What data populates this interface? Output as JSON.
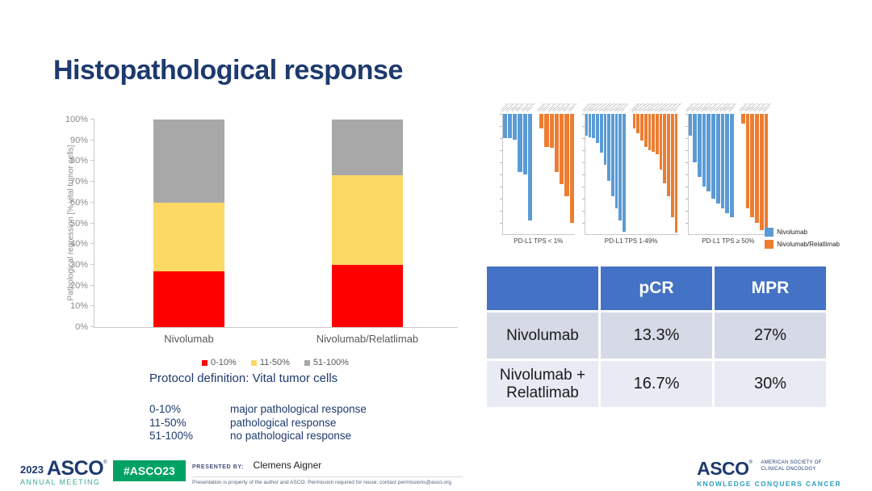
{
  "slide": {
    "title": "Histopathological response"
  },
  "protocol": {
    "heading": "Protocol definition: Vital tumor cells",
    "definitions": [
      {
        "range": "0-10%",
        "meaning": "major pathological response"
      },
      {
        "range": "11-50%",
        "meaning": "pathological response"
      },
      {
        "range": "51-100%",
        "meaning": "no pathological response"
      }
    ]
  },
  "chart_data": [
    {
      "type": "bar",
      "stacked": true,
      "title": "",
      "ylabel": "Pathological regression [% vital tumor cells]",
      "xlabel": "",
      "ylim": [
        0,
        100
      ],
      "yticks": [
        "0%",
        "10%",
        "20%",
        "30%",
        "40%",
        "50%",
        "60%",
        "70%",
        "80%",
        "90%",
        "100%"
      ],
      "categories": [
        "Nivolumab",
        "Nivolumab/Relatlimab"
      ],
      "series": [
        {
          "name": "0-10%",
          "color": "#FE0000",
          "values": [
            27,
            30
          ]
        },
        {
          "name": "11-50%",
          "color": "#FBD964",
          "values": [
            33,
            43
          ]
        },
        {
          "name": "51-100%",
          "color": "#A8A8A8",
          "values": [
            40,
            27
          ]
        }
      ],
      "legend_position": "bottom",
      "grid": false
    },
    {
      "type": "bar",
      "subtype": "waterfall",
      "title": "",
      "ylim": [
        0,
        -100
      ],
      "panels": [
        {
          "label": "PD-L1 TPS < 1%",
          "series": [
            {
              "name": "Nivolumab",
              "color": "#5B9BD5",
              "values": [
                -20,
                -20,
                -21,
                -48,
                -50,
                -88
              ]
            },
            {
              "name": "Nivolumab/Relatlimab",
              "color": "#ED7D31",
              "values": [
                -12,
                -27,
                -28,
                -48,
                -58,
                -68,
                -90
              ]
            }
          ]
        },
        {
          "label": "PD-L1 TPS 1-49%",
          "series": [
            {
              "name": "Nivolumab",
              "color": "#5B9BD5",
              "values": [
                -18,
                -19,
                -20,
                -24,
                -32,
                -42,
                -55,
                -68,
                -78,
                -88,
                -97
              ]
            },
            {
              "name": "Nivolumab/Relatlimab",
              "color": "#ED7D31",
              "values": [
                -12,
                -16,
                -22,
                -27,
                -30,
                -31,
                -33,
                -46,
                -57,
                -68,
                -85,
                -98
              ]
            }
          ]
        },
        {
          "label": "PD-L1 TPS ≥ 50%",
          "series": [
            {
              "name": "Nivolumab",
              "color": "#5B9BD5",
              "values": [
                -18,
                -40,
                -52,
                -60,
                -64,
                -70,
                -74,
                -78,
                -82,
                -85
              ]
            },
            {
              "name": "Nivolumab/Relatlimab",
              "color": "#ED7D31",
              "values": [
                -8,
                -78,
                -85,
                -90,
                -96,
                -100
              ]
            }
          ]
        }
      ],
      "legend": [
        {
          "name": "Nivolumab",
          "color": "#5B9BD5"
        },
        {
          "name": "Nivolumab/Relatlimab",
          "color": "#ED7D31"
        }
      ],
      "legend_position": "right-bottom",
      "grid": false
    },
    {
      "type": "table",
      "columns": [
        "",
        "pCR",
        "MPR"
      ],
      "rows": [
        [
          "Nivolumab",
          "13.3%",
          "27%"
        ],
        [
          "Nivolumab + Relatlimab",
          "16.7%",
          "30%"
        ]
      ]
    }
  ],
  "footer": {
    "year": "2023",
    "logo_wordmark": "ASCO",
    "meeting": "ANNUAL MEETING",
    "hashtag": "#ASCO23",
    "presented_by_label": "PRESENTED BY:",
    "presenter": "Clemens Aigner",
    "disclaimer": "Presentation is property of the author and ASCO. Permission required for reuse; contact permissions@asco.org.",
    "right_logo": {
      "wordmark": "ASCO",
      "society_line1": "AMERICAN SOCIETY OF",
      "society_line2": "CLINICAL ONCOLOGY",
      "tagline": "KNOWLEDGE CONQUERS CANCER"
    }
  },
  "colors": {
    "title_navy": "#1E3A6E",
    "table_header_blue": "#4472C4",
    "table_row_odd": "#D6D9E6",
    "table_row_even": "#E9EBF4",
    "badge_green": "#00A264",
    "meeting_green": "#3BAD92",
    "tagline_teal": "#2B9FBC"
  }
}
